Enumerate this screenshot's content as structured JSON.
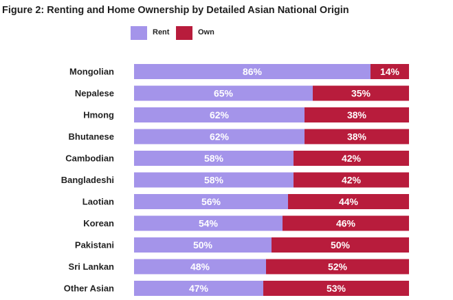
{
  "chart_data": {
    "type": "bar",
    "orientation": "horizontal",
    "stacked": true,
    "title": "Figure 2: Renting and Home Ownership by Detailed Asian National Origin",
    "categories": [
      "Mongolian",
      "Nepalese",
      "Hmong",
      "Bhutanese",
      "Cambodian",
      "Bangladeshi",
      "Laotian",
      "Korean",
      "Pakistani",
      "Sri Lankan",
      "Other Asian"
    ],
    "series": [
      {
        "name": "Rent",
        "color": "#a494ea",
        "values": [
          86,
          65,
          62,
          62,
          58,
          58,
          56,
          54,
          50,
          48,
          47
        ]
      },
      {
        "name": "Own",
        "color": "#b81c3c",
        "values": [
          14,
          35,
          38,
          38,
          42,
          42,
          44,
          46,
          50,
          52,
          53
        ]
      }
    ],
    "value_suffix": "%",
    "xlim": [
      0,
      100
    ],
    "legend_position": "top",
    "grid": false
  }
}
